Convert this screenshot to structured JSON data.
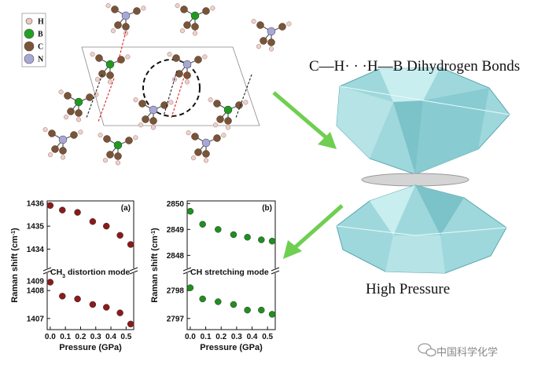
{
  "legend": [
    {
      "symbol": "H",
      "color": "#e8c8c0"
    },
    {
      "symbol": "B",
      "color": "#22a022"
    },
    {
      "symbol": "C",
      "color": "#7a5438"
    },
    {
      "symbol": "N",
      "color": "#a8a8d8"
    }
  ],
  "bond_title": "C—H· · ·H—B Dihydrogen Bonds",
  "pressure_label": "High Pressure",
  "watermark": "中国科学化学",
  "colors": {
    "arrow": "#6fcf50",
    "diamond": "#9fd8dc",
    "chart_a": "#8b1a1a",
    "chart_b": "#1f8f1f"
  },
  "chart_data": [
    {
      "type": "scatter",
      "panel": "(a)",
      "annotation": "CH3 distortion mode",
      "xlabel": "Pressure (GPa)",
      "ylabel": "Raman shift (cm-1)",
      "x_ticks": [
        "0.0",
        "0.1",
        "0.2",
        "0.3",
        "0.4",
        "0.5"
      ],
      "xlim": [
        -0.02,
        0.55
      ],
      "upper": {
        "ylim": [
          1433.5,
          1436.1
        ],
        "ticks": [
          "1436",
          "1435",
          "1434"
        ],
        "x": [
          0.0,
          0.08,
          0.18,
          0.28,
          0.37,
          0.46,
          0.53
        ],
        "y": [
          1435.9,
          1435.7,
          1435.6,
          1435.2,
          1435.0,
          1434.6,
          1434.2
        ]
      },
      "lower": {
        "ylim": [
          1406.6,
          1408.4
        ],
        "ticks": [
          "1409",
          "1408",
          "1407"
        ],
        "x": [
          0.0,
          0.08,
          0.18,
          0.28,
          0.37,
          0.46,
          0.53
        ],
        "y": [
          1408.3,
          1407.8,
          1407.7,
          1407.5,
          1407.4,
          1407.2,
          1406.8
        ]
      }
    },
    {
      "type": "scatter",
      "panel": "(b)",
      "annotation": "CH stretching mode",
      "xlabel": "Pressure (GPa)",
      "ylabel": "Raman shift (cm-1)",
      "x_ticks": [
        "0.0",
        "0.1",
        "0.2",
        "0.3",
        "0.4",
        "0.5"
      ],
      "xlim": [
        -0.02,
        0.55
      ],
      "upper": {
        "ylim": [
          2847.8,
          2850.1
        ],
        "ticks": [
          "2850",
          "2849",
          "2848"
        ],
        "x": [
          0.0,
          0.08,
          0.18,
          0.28,
          0.37,
          0.46,
          0.53
        ],
        "y": [
          2849.7,
          2849.2,
          2849.0,
          2848.8,
          2848.7,
          2848.6,
          2848.55
        ]
      },
      "lower": {
        "ylim": [
          2796.6,
          2798.4
        ],
        "ticks": [
          "2798",
          "2797"
        ],
        "x": [
          0.0,
          0.08,
          0.18,
          0.28,
          0.37,
          0.46,
          0.53
        ],
        "y": [
          2798.1,
          2797.7,
          2797.6,
          2797.5,
          2797.3,
          2797.3,
          2797.15
        ]
      }
    }
  ]
}
